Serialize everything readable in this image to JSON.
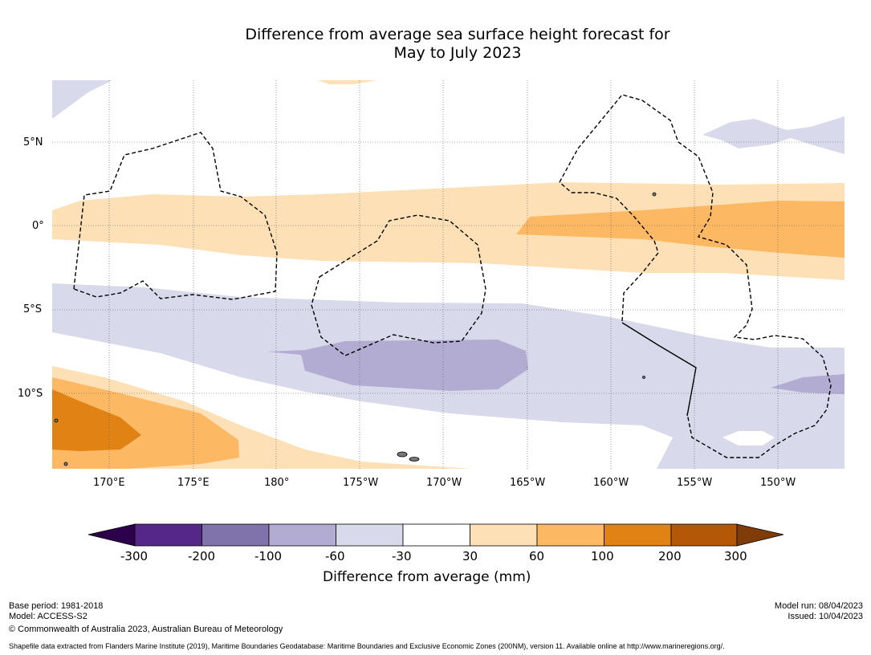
{
  "title_line1": "Difference from average sea surface height forecast for",
  "title_line2": "May to July 2023",
  "lat_labels": [
    "5°N",
    "0°",
    "5°S",
    "10°S"
  ],
  "lon_labels": [
    "170°E",
    "175°E",
    "180°",
    "175°W",
    "170°W",
    "165°W",
    "160°W",
    "155°W",
    "150°W"
  ],
  "colorbar": {
    "ticks": [
      "-300",
      "-200",
      "-100",
      "-60",
      "-30",
      "30",
      "60",
      "100",
      "200",
      "300"
    ],
    "colors": [
      "#2d004b",
      "#542788",
      "#8073ac",
      "#b2abd2",
      "#d8daeb",
      "#ffffff",
      "#fee0b6",
      "#fdb863",
      "#e08214",
      "#b35806",
      "#7f3b08"
    ],
    "label": "Difference from average (mm)"
  },
  "footer": {
    "base_period": "Base period: 1981-2018",
    "model": "Model: ACCESS-S2",
    "copyright": "© Commonwealth of Australia 2023, Australian Bureau of Meteorology",
    "model_run": "Model run: 08/04/2023",
    "issued": "Issued: 10/04/2023",
    "shapefile": "Shapefile data extracted from Flanders Marine Institute (2019), Maritime Boundaries Geodatabase: Maritime Boundaries and Exclusive Economic Zones (200NM), version 11. Available online at http://www.marineregions.org/."
  }
}
